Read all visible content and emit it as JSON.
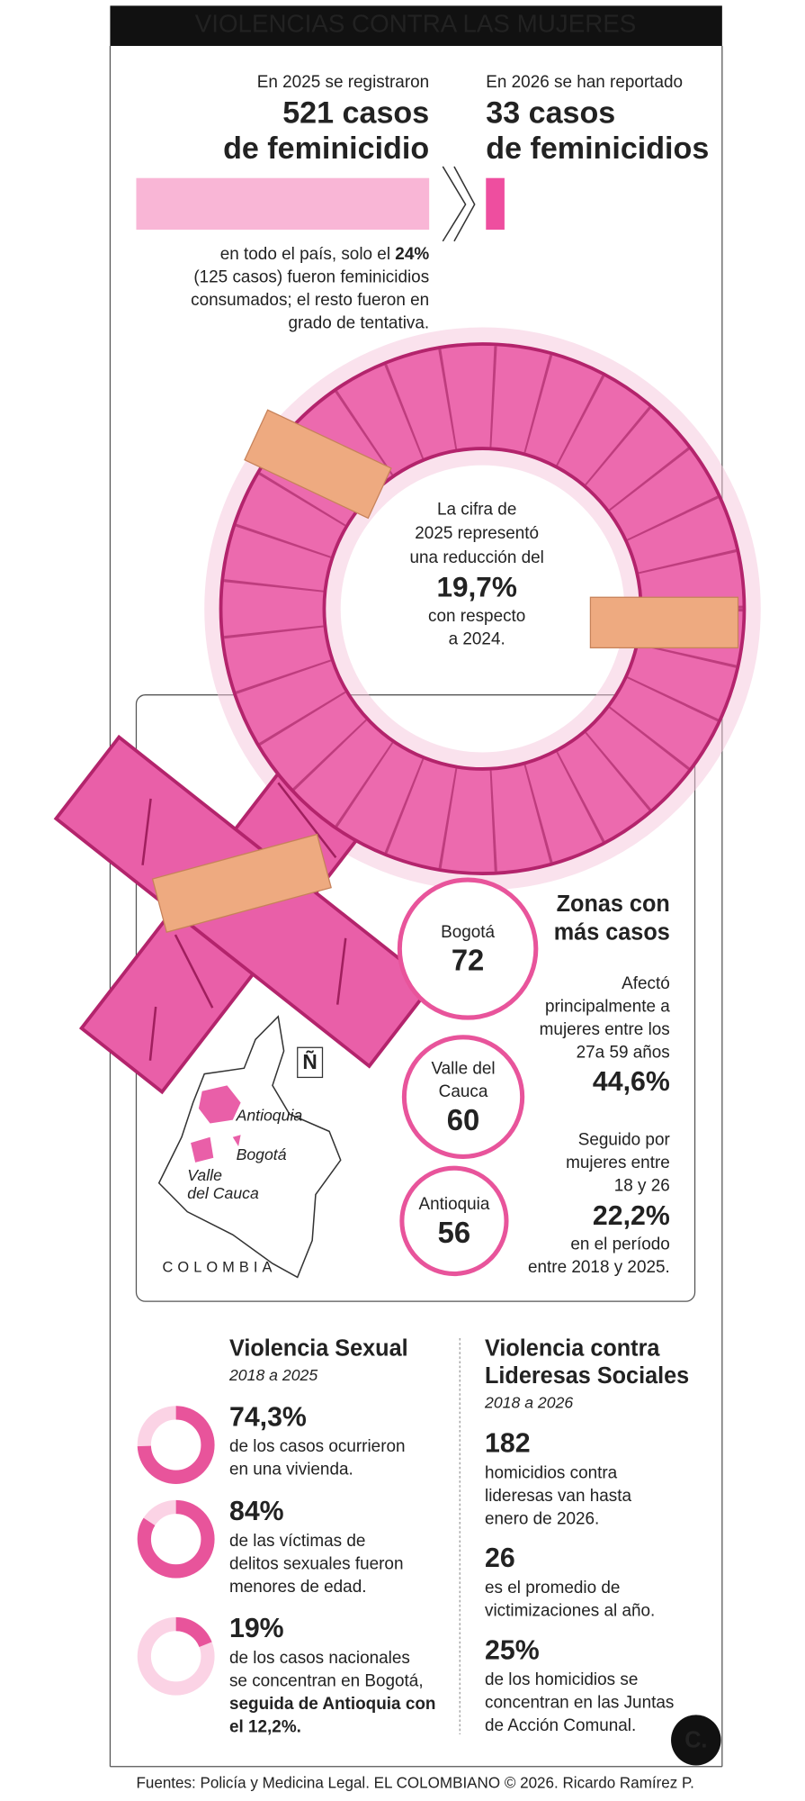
{
  "header": {
    "title": "VIOLENCIAS CONTRA LAS MUJERES"
  },
  "cases": {
    "y2025": {
      "intro": "En 2025 se registraron",
      "headline": [
        "521 casos",
        "de feminicidio"
      ],
      "value": 521
    },
    "y2026": {
      "intro": "En 2026 se han reportado",
      "headline": [
        "33 casos",
        "de feminicidios"
      ],
      "value": 33
    },
    "note": {
      "first": "en todo el país, solo el",
      "bold": "24%",
      "lines": [
        "(125 casos) fueron feminicidios",
        "consumados; el resto fueron en",
        "grado de tentativa."
      ]
    }
  },
  "reduction": {
    "lines": [
      "La cifra de",
      "2025 representó",
      "una reducción del"
    ],
    "figure": "19,7%",
    "after": [
      "con respecto",
      "a 2024."
    ]
  },
  "zones": {
    "title": [
      "Zonas con",
      "más casos"
    ],
    "cities": [
      {
        "name": [
          "Bogotá"
        ],
        "value": 72
      },
      {
        "name": [
          "Valle del",
          "Cauca"
        ],
        "value": 60
      },
      {
        "name": [
          "Antioquia"
        ],
        "value": 56
      }
    ],
    "age1": {
      "lines": [
        "Afectó",
        "principalmente a",
        "mujeres entre los",
        "27a 59 años"
      ],
      "figure": "44,6%"
    },
    "age2": {
      "lines": [
        "Seguido por",
        "mujeres entre",
        "18 y 26"
      ],
      "figure": "22,2%",
      "after": [
        "en el período",
        "entre 2018 y 2025."
      ]
    }
  },
  "map": {
    "antioquia": "Antioquia",
    "bogota": "Bogotá",
    "valle": [
      "Valle",
      "del Cauca"
    ],
    "country": "COLOMBIA",
    "north": "Ñ"
  },
  "sexual": {
    "title": "Violencia Sexual",
    "period": "2018 a 2025",
    "items": [
      {
        "value": 74.3,
        "label": "74,3%",
        "lines": [
          "de los casos ocurrieron",
          "en una vivienda."
        ]
      },
      {
        "value": 84,
        "label": "84%",
        "lines": [
          "de las víctimas de",
          "delitos sexuales fueron",
          "menores de edad."
        ]
      },
      {
        "value": 19,
        "label": "19%",
        "lines": [
          "de los casos nacionales",
          "se concentran en Bogotá,"
        ],
        "bold_lines": [
          "seguida de Antioquia con",
          "el 12,2%."
        ]
      }
    ]
  },
  "leaders": {
    "title": [
      "Violencia contra",
      "Lideresas Sociales"
    ],
    "period": "2018 a 2026",
    "items": [
      {
        "figure": "182",
        "lines": [
          "homicidios contra",
          "lideresas van hasta",
          "enero de 2026."
        ]
      },
      {
        "figure": "26",
        "lines": [
          "es el promedio de",
          "victimizaciones al año."
        ]
      },
      {
        "figure": "25%",
        "lines": [
          "de los homicidios se",
          "concentran en las Juntas",
          "de Acción Comunal."
        ]
      }
    ]
  },
  "footer": {
    "source": "Fuentes: Policía y Medicina Legal. EL COLOMBIANO © 2026. Ricardo Ramírez P.",
    "logo": "C."
  }
}
